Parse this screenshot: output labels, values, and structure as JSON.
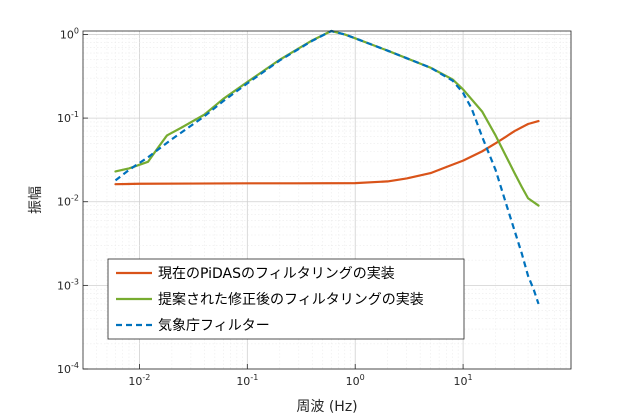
{
  "chart_data": {
    "type": "line",
    "title": "",
    "xlabel": "周波 (Hz)",
    "ylabel": "振幅",
    "xscale": "log",
    "yscale": "log",
    "xlim": [
      0.003,
      100
    ],
    "ylim": [
      0.0001,
      1.1
    ],
    "grid": true,
    "minor_grid": true,
    "legend_position": "lower-left",
    "x_ticks": [
      {
        "base": "10",
        "exp": "-2",
        "value": 0.01
      },
      {
        "base": "10",
        "exp": "-1",
        "value": 0.1
      },
      {
        "base": "10",
        "exp": "0",
        "value": 1
      },
      {
        "base": "10",
        "exp": "1",
        "value": 10
      }
    ],
    "y_ticks": [
      {
        "base": "10",
        "exp": "-4",
        "value": 0.0001
      },
      {
        "base": "10",
        "exp": "-3",
        "value": 0.001
      },
      {
        "base": "10",
        "exp": "-2",
        "value": 0.01
      },
      {
        "base": "10",
        "exp": "-1",
        "value": 0.1
      },
      {
        "base": "10",
        "exp": "0",
        "value": 1
      }
    ],
    "series": [
      {
        "name": "現在のPiDASのフィルタリングの実装",
        "color": "#D95319",
        "dash": "solid",
        "points": [
          [
            0.006,
            0.0162
          ],
          [
            0.01,
            0.0164
          ],
          [
            0.03,
            0.0165
          ],
          [
            0.1,
            0.0166
          ],
          [
            0.3,
            0.0166
          ],
          [
            1,
            0.0167
          ],
          [
            2,
            0.0175
          ],
          [
            3,
            0.019
          ],
          [
            5,
            0.022
          ],
          [
            7,
            0.026
          ],
          [
            10,
            0.031
          ],
          [
            15,
            0.04
          ],
          [
            20,
            0.05
          ],
          [
            25,
            0.06
          ],
          [
            30,
            0.07
          ],
          [
            40,
            0.085
          ],
          [
            50,
            0.092
          ]
        ]
      },
      {
        "name": "提案された修正後のフィルタリングの実装",
        "color": "#77AC30",
        "dash": "solid",
        "points": [
          [
            0.006,
            0.023
          ],
          [
            0.008,
            0.025
          ],
          [
            0.012,
            0.03
          ],
          [
            0.015,
            0.045
          ],
          [
            0.018,
            0.062
          ],
          [
            0.025,
            0.078
          ],
          [
            0.04,
            0.11
          ],
          [
            0.06,
            0.17
          ],
          [
            0.1,
            0.27
          ],
          [
            0.2,
            0.5
          ],
          [
            0.4,
            0.85
          ],
          [
            0.6,
            1.1
          ],
          [
            0.8,
            1.0
          ],
          [
            1,
            0.9
          ],
          [
            2,
            0.64
          ],
          [
            5,
            0.4
          ],
          [
            8,
            0.29
          ],
          [
            10,
            0.22
          ],
          [
            15,
            0.12
          ],
          [
            20,
            0.062
          ],
          [
            25,
            0.035
          ],
          [
            30,
            0.022
          ],
          [
            35,
            0.015
          ],
          [
            40,
            0.011
          ],
          [
            50,
            0.009
          ]
        ]
      },
      {
        "name": "気象庁フィルター",
        "color": "#0072BD",
        "dash": "dashed",
        "points": [
          [
            0.006,
            0.018
          ],
          [
            0.008,
            0.024
          ],
          [
            0.012,
            0.034
          ],
          [
            0.02,
            0.056
          ],
          [
            0.04,
            0.105
          ],
          [
            0.06,
            0.16
          ],
          [
            0.1,
            0.26
          ],
          [
            0.2,
            0.49
          ],
          [
            0.4,
            0.84
          ],
          [
            0.6,
            1.1
          ],
          [
            0.8,
            1.0
          ],
          [
            1,
            0.9
          ],
          [
            2,
            0.64
          ],
          [
            5,
            0.4
          ],
          [
            8,
            0.28
          ],
          [
            10,
            0.2
          ],
          [
            12,
            0.13
          ],
          [
            15,
            0.06
          ],
          [
            20,
            0.024
          ],
          [
            25,
            0.0095
          ],
          [
            30,
            0.0045
          ],
          [
            35,
            0.0024
          ],
          [
            40,
            0.0013
          ],
          [
            45,
            0.0009
          ],
          [
            50,
            0.0006
          ]
        ]
      }
    ]
  }
}
